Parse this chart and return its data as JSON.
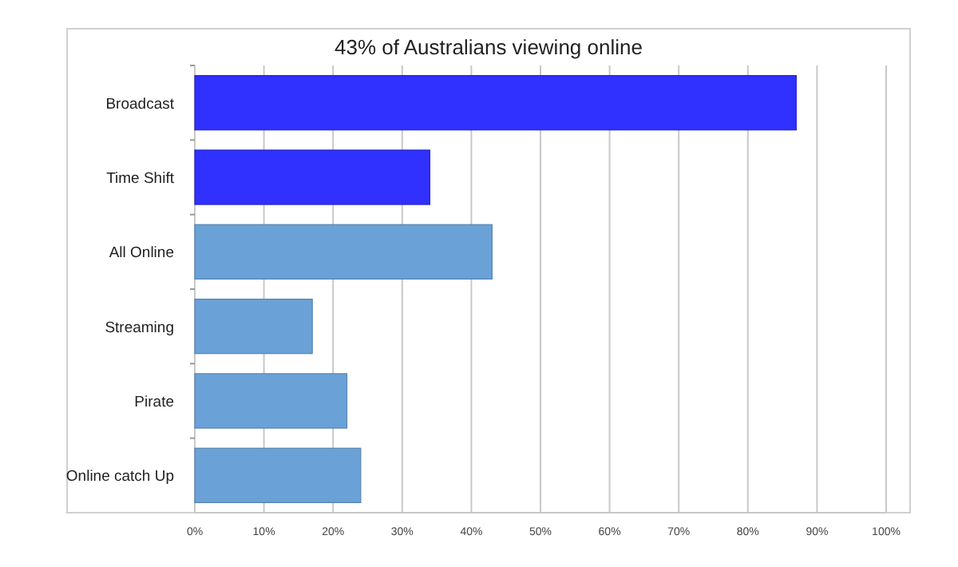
{
  "chart_data": {
    "type": "bar",
    "orientation": "horizontal",
    "title": "43% of Australians viewing online",
    "categories": [
      "Broadcast",
      "Time Shift",
      "All Online",
      "Streaming",
      "Pirate",
      "Online catch Up"
    ],
    "values": [
      87,
      34,
      43,
      17,
      22,
      24
    ],
    "colors": [
      "#3030ff",
      "#3030ff",
      "#6aa2d8",
      "#6aa2d8",
      "#6aa2d8",
      "#6aa2d8"
    ],
    "xlim": [
      0,
      100
    ],
    "xticks": [
      {
        "value": 0,
        "label": "0%"
      },
      {
        "value": 10,
        "label": "10%"
      },
      {
        "value": 20,
        "label": "20%"
      },
      {
        "value": 30,
        "label": "30%"
      },
      {
        "value": 40,
        "label": "40%"
      },
      {
        "value": 50,
        "label": "50%"
      },
      {
        "value": 60,
        "label": "60%"
      },
      {
        "value": 70,
        "label": "70%"
      },
      {
        "value": 80,
        "label": "80%"
      },
      {
        "value": 90,
        "label": "90%"
      },
      {
        "value": 100,
        "label": "100%"
      }
    ],
    "grid": "x"
  }
}
